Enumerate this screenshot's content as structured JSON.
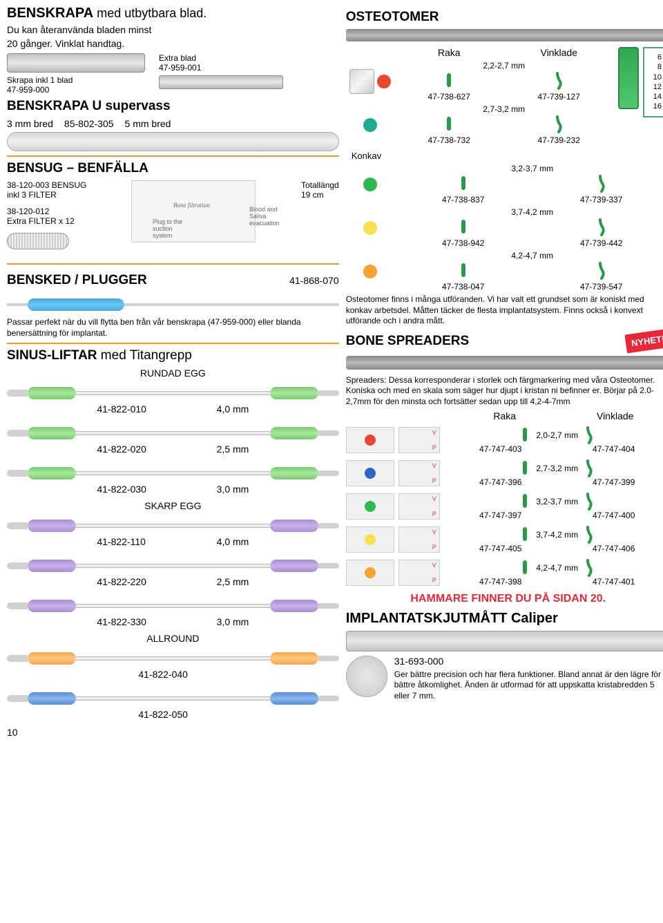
{
  "page_number": "10",
  "benskrapa": {
    "title_a": "BENSKRAPA",
    "title_b": " med utbytbara blad.",
    "sub1": "Du kan återanvända bladen minst",
    "sub2": "20 gånger. Vinklat handtag.",
    "skrapa_label": "Skrapa inkl 1 blad",
    "skrapa_code": "47-959-000",
    "extra_label": "Extra blad",
    "extra_code": "47-959-001",
    "u_title": "BENSKRAPA U supervass",
    "u_3mm": "3 mm bred",
    "u_code": "85-802-305",
    "u_5mm": "5 mm bred"
  },
  "bensug": {
    "title": "BENSUG – BENFÄLLA",
    "item1": "38-120-003 BENSUG",
    "item1b": "inkl 3 FILTER",
    "item2": "38-120-012",
    "item2b": "Extra FILTER x 12",
    "length_a": "Totallängd",
    "length_b": "19 cm",
    "fig_bone": "Bone filtration",
    "fig_plug": "Plug to the suction system",
    "fig_blood": "Blood and Saliva evacuation"
  },
  "bensked": {
    "title": "BENSKED / PLUGGER",
    "code": "41-868-070",
    "desc": "Passar perfekt när du vill flytta ben från vår benskrapa (47-959-000) eller blanda benersättning för implantat."
  },
  "sinus": {
    "title_a": "SINUS-LIFTAR",
    "title_b": " med Titangrepp",
    "rundad": "RUNDAD EGG",
    "skarp": "SKARP EGG",
    "allround": "ALLROUND",
    "items_rundad": [
      {
        "code": "41-822-010",
        "size": "4,0 mm",
        "grip": "grip-green"
      },
      {
        "code": "41-822-020",
        "size": "2,5 mm",
        "grip": "grip-green"
      },
      {
        "code": "41-822-030",
        "size": "3,0 mm",
        "grip": "grip-green"
      }
    ],
    "items_skarp": [
      {
        "code": "41-822-110",
        "size": "4,0 mm",
        "grip": "grip-purple"
      },
      {
        "code": "41-822-220",
        "size": "2,5 mm",
        "grip": "grip-purple"
      },
      {
        "code": "41-822-330",
        "size": "3,0 mm",
        "grip": "grip-purple"
      }
    ],
    "items_allround": [
      {
        "code": "41-822-040",
        "size": "",
        "grip": "grip-orange"
      },
      {
        "code": "41-822-050",
        "size": "",
        "grip": "grip-blue"
      }
    ]
  },
  "osteotomer": {
    "title": "OSTEOTOMER",
    "konkav": "Konkav",
    "raka": "Raka",
    "vinklade": "Vinklade",
    "scale": [
      "6 -",
      "8 -",
      "10 -",
      "12 -",
      "14 -",
      "16 -"
    ],
    "rows": [
      {
        "mm": "2,2-2,7 mm",
        "raka": "47-738-627",
        "vink": "47-739-127",
        "color": "c-red"
      },
      {
        "mm": "2,7-3,2 mm",
        "raka": "47-738-732",
        "vink": "47-739-232",
        "color": "c-teal"
      },
      {
        "mm": "3,2-3,7 mm",
        "raka": "47-738-837",
        "vink": "47-739-337",
        "color": "c-green"
      },
      {
        "mm": "3,7-4,2 mm",
        "raka": "47-738-942",
        "vink": "47-739-442",
        "color": "c-yellow"
      },
      {
        "mm": "4,2-4,7 mm",
        "raka": "47-738-047",
        "vink": "47-739-547",
        "color": "c-orange"
      }
    ],
    "desc": "Osteotomer finns i många utföranden. Vi har valt ett grundset som är koniskt med konkav arbetsdel. Måtten täcker de flesta implantatsystem. Finns också i konvext utförande och i andra mått."
  },
  "spreaders": {
    "title": "BONE SPREADERS",
    "nyhet": "NYHET!",
    "desc": "Spreaders: Dessa korresponderar i storlek och färgmarkering med våra Osteotomer. Koniska och med en skala som säger hur djupt i kristan ni befinner er. Börjar på 2.0-2,7mm för den minsta och fortsätter sedan upp till 4,2-4-7mm",
    "raka": "Raka",
    "vinklade": "Vinklade",
    "rows": [
      {
        "mm": "2,0-2,7 mm",
        "raka": "47-747-403",
        "vink": "47-747-404",
        "color": "c-red"
      },
      {
        "mm": "2,7-3,2 mm",
        "raka": "47-747-396",
        "vink": "47-747-399",
        "color": "c-blue"
      },
      {
        "mm": "3,2-3,7 mm",
        "raka": "47-747-397",
        "vink": "47-747-400",
        "color": "c-green"
      },
      {
        "mm": "3,7-4,2 mm",
        "raka": "47-747-405",
        "vink": "47-747-406",
        "color": "c-yellow"
      },
      {
        "mm": "4,2-4,7 mm",
        "raka": "47-747-398",
        "vink": "47-747-401",
        "color": "c-orange"
      }
    ]
  },
  "hammare": "HAMMARE FINNER DU PÅ SIDAN 20.",
  "caliper": {
    "title": "IMPLANTATSKJUTMÅTT Caliper",
    "code": "31-693-000",
    "desc": "Ger bättre precision och har flera funktioner. Bland annat är den lägre för bättre åtkomlighet. Änden är utformad för att uppskatta kristabredden 5 eller 7 mm."
  }
}
